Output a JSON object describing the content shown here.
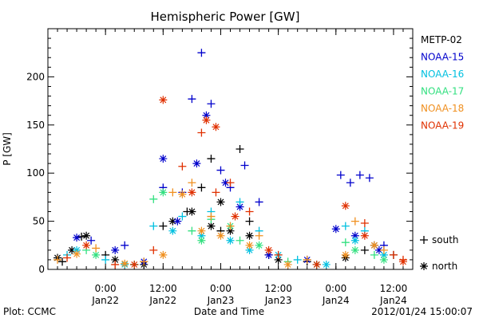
{
  "chart_data": {
    "type": "scatter",
    "title": "Hemispheric Power [GW]",
    "xlabel": "Date and Time",
    "ylabel": "P [GW]",
    "xlim": [
      "2012-01-21 12:00",
      "2012-01-24 16:00"
    ],
    "ylim": [
      0,
      250
    ],
    "y_ticks": [
      0,
      50,
      100,
      150,
      200
    ],
    "x_ticks": [
      {
        "at": "2012-01-22 00:00",
        "time": "0:00",
        "date": "Jan22"
      },
      {
        "at": "2012-01-22 12:00",
        "time": "12:00",
        "date": "Jan22"
      },
      {
        "at": "2012-01-23 00:00",
        "time": "0:00",
        "date": "Jan23"
      },
      {
        "at": "2012-01-23 12:00",
        "time": "12:00",
        "date": "Jan23"
      },
      {
        "at": "2012-01-24 00:00",
        "time": "0:00",
        "date": "Jan24"
      },
      {
        "at": "2012-01-24 12:00",
        "time": "12:00",
        "date": "Jan24"
      }
    ],
    "grid": false,
    "legend_position": "right",
    "symbol_legend": [
      {
        "symbol": "+",
        "label": "south"
      },
      {
        "symbol": "*",
        "label": "north"
      }
    ],
    "series": [
      {
        "name": "METP-02",
        "color": "#000000",
        "south": [
          [
            "2012-01-21 15:00",
            8
          ],
          [
            "2012-01-21 19:00",
            34
          ],
          [
            "2012-01-22 00:00",
            15
          ],
          [
            "2012-01-22 06:00",
            5
          ],
          [
            "2012-01-22 12:00",
            45
          ],
          [
            "2012-01-22 17:00",
            60
          ],
          [
            "2012-01-22 20:00",
            85
          ],
          [
            "2012-01-22 22:00",
            115
          ],
          [
            "2012-01-23 00:00",
            40
          ],
          [
            "2012-01-23 04:00",
            125
          ],
          [
            "2012-01-23 06:00",
            50
          ],
          [
            "2012-01-23 10:00",
            15
          ],
          [
            "2012-01-23 18:00",
            8
          ],
          [
            "2012-01-24 06:00",
            20
          ],
          [
            "2012-01-24 12:00",
            15
          ]
        ],
        "north": [
          [
            "2012-01-21 14:00",
            12
          ],
          [
            "2012-01-21 17:00",
            20
          ],
          [
            "2012-01-21 20:00",
            35
          ],
          [
            "2012-01-22 02:00",
            10
          ],
          [
            "2012-01-22 08:00",
            5
          ],
          [
            "2012-01-22 14:00",
            50
          ],
          [
            "2012-01-22 18:00",
            60
          ],
          [
            "2012-01-22 22:00",
            45
          ],
          [
            "2012-01-23 00:00",
            70
          ],
          [
            "2012-01-23 02:00",
            40
          ],
          [
            "2012-01-23 06:00",
            35
          ],
          [
            "2012-01-23 12:00",
            10
          ],
          [
            "2012-01-23 20:00",
            5
          ],
          [
            "2012-01-24 02:00",
            12
          ],
          [
            "2012-01-24 08:00",
            25
          ]
        ]
      },
      {
        "name": "NOAA-15",
        "color": "#0000cc",
        "south": [
          [
            "2012-01-21 21:00",
            30
          ],
          [
            "2012-01-22 04:00",
            25
          ],
          [
            "2012-01-22 12:00",
            85
          ],
          [
            "2012-01-22 16:00",
            80
          ],
          [
            "2012-01-22 18:00",
            177
          ],
          [
            "2012-01-22 20:00",
            225
          ],
          [
            "2012-01-22 22:00",
            172
          ],
          [
            "2012-01-23 00:00",
            103
          ],
          [
            "2012-01-23 02:00",
            85
          ],
          [
            "2012-01-23 05:00",
            108
          ],
          [
            "2012-01-23 08:00",
            70
          ],
          [
            "2012-01-24 01:00",
            98
          ],
          [
            "2012-01-24 03:00",
            90
          ],
          [
            "2012-01-24 05:00",
            98
          ],
          [
            "2012-01-24 07:00",
            95
          ],
          [
            "2012-01-24 10:00",
            25
          ]
        ],
        "north": [
          [
            "2012-01-21 18:00",
            33
          ],
          [
            "2012-01-22 02:00",
            20
          ],
          [
            "2012-01-22 08:00",
            8
          ],
          [
            "2012-01-22 12:00",
            115
          ],
          [
            "2012-01-22 15:00",
            50
          ],
          [
            "2012-01-22 19:00",
            110
          ],
          [
            "2012-01-22 21:00",
            160
          ],
          [
            "2012-01-23 01:00",
            90
          ],
          [
            "2012-01-23 04:00",
            65
          ],
          [
            "2012-01-23 10:00",
            15
          ],
          [
            "2012-01-23 18:00",
            10
          ],
          [
            "2012-01-24 00:00",
            42
          ],
          [
            "2012-01-24 04:00",
            35
          ],
          [
            "2012-01-24 09:00",
            20
          ]
        ]
      },
      {
        "name": "NOAA-16",
        "color": "#00c0e0",
        "south": [
          [
            "2012-01-21 16:00",
            15
          ],
          [
            "2012-01-22 00:00",
            10
          ],
          [
            "2012-01-22 10:00",
            45
          ],
          [
            "2012-01-22 16:00",
            55
          ],
          [
            "2012-01-22 22:00",
            60
          ],
          [
            "2012-01-23 04:00",
            70
          ],
          [
            "2012-01-23 08:00",
            40
          ],
          [
            "2012-01-23 16:00",
            10
          ],
          [
            "2012-01-24 02:00",
            45
          ],
          [
            "2012-01-24 06:00",
            40
          ]
        ],
        "north": [
          [
            "2012-01-21 18:00",
            20
          ],
          [
            "2012-01-22 04:00",
            5
          ],
          [
            "2012-01-22 14:00",
            40
          ],
          [
            "2012-01-22 20:00",
            35
          ],
          [
            "2012-01-23 02:00",
            30
          ],
          [
            "2012-01-23 06:00",
            20
          ],
          [
            "2012-01-23 12:00",
            15
          ],
          [
            "2012-01-23 22:00",
            5
          ],
          [
            "2012-01-24 04:00",
            30
          ],
          [
            "2012-01-24 10:00",
            15
          ]
        ]
      },
      {
        "name": "NOAA-17",
        "color": "#33e080",
        "south": [
          [
            "2012-01-21 20:00",
            20
          ],
          [
            "2012-01-22 06:00",
            5
          ],
          [
            "2012-01-22 10:00",
            73
          ],
          [
            "2012-01-22 18:00",
            40
          ],
          [
            "2012-01-22 22:00",
            52
          ],
          [
            "2012-01-23 04:00",
            30
          ],
          [
            "2012-01-23 14:00",
            8
          ],
          [
            "2012-01-24 02:00",
            28
          ],
          [
            "2012-01-24 08:00",
            15
          ]
        ],
        "north": [
          [
            "2012-01-21 22:00",
            15
          ],
          [
            "2012-01-22 12:00",
            80
          ],
          [
            "2012-01-22 20:00",
            30
          ],
          [
            "2012-01-23 02:00",
            45
          ],
          [
            "2012-01-23 08:00",
            25
          ],
          [
            "2012-01-23 20:00",
            5
          ],
          [
            "2012-01-24 04:00",
            20
          ],
          [
            "2012-01-24 10:00",
            10
          ]
        ]
      },
      {
        "name": "NOAA-18",
        "color": "#f09020",
        "south": [
          [
            "2012-01-21 14:00",
            10
          ],
          [
            "2012-01-21 22:00",
            22
          ],
          [
            "2012-01-22 08:00",
            8
          ],
          [
            "2012-01-22 14:00",
            80
          ],
          [
            "2012-01-22 18:00",
            90
          ],
          [
            "2012-01-22 22:00",
            55
          ],
          [
            "2012-01-23 02:00",
            45
          ],
          [
            "2012-01-23 08:00",
            35
          ],
          [
            "2012-01-23 18:00",
            10
          ],
          [
            "2012-01-24 04:00",
            50
          ],
          [
            "2012-01-24 10:00",
            20
          ]
        ],
        "north": [
          [
            "2012-01-21 18:00",
            16
          ],
          [
            "2012-01-22 04:00",
            6
          ],
          [
            "2012-01-22 12:00",
            15
          ],
          [
            "2012-01-22 16:00",
            78
          ],
          [
            "2012-01-22 20:00",
            40
          ],
          [
            "2012-01-23 00:00",
            35
          ],
          [
            "2012-01-23 06:00",
            25
          ],
          [
            "2012-01-23 14:00",
            5
          ],
          [
            "2012-01-24 02:00",
            15
          ],
          [
            "2012-01-24 08:00",
            25
          ]
        ]
      },
      {
        "name": "NOAA-19",
        "color": "#e03000",
        "south": [
          [
            "2012-01-21 16:00",
            12
          ],
          [
            "2012-01-22 02:00",
            5
          ],
          [
            "2012-01-22 10:00",
            20
          ],
          [
            "2012-01-22 16:00",
            107
          ],
          [
            "2012-01-22 20:00",
            142
          ],
          [
            "2012-01-22 23:00",
            80
          ],
          [
            "2012-01-23 02:00",
            90
          ],
          [
            "2012-01-23 06:00",
            60
          ],
          [
            "2012-01-23 12:00",
            15
          ],
          [
            "2012-01-24 06:00",
            48
          ],
          [
            "2012-01-24 12:00",
            15
          ],
          [
            "2012-01-24 14:00",
            10
          ]
        ],
        "north": [
          [
            "2012-01-21 20:00",
            25
          ],
          [
            "2012-01-22 06:00",
            5
          ],
          [
            "2012-01-22 12:00",
            176
          ],
          [
            "2012-01-22 18:00",
            80
          ],
          [
            "2012-01-22 21:00",
            155
          ],
          [
            "2012-01-22 23:00",
            148
          ],
          [
            "2012-01-23 03:00",
            55
          ],
          [
            "2012-01-23 10:00",
            20
          ],
          [
            "2012-01-23 20:00",
            5
          ],
          [
            "2012-01-24 02:00",
            66
          ],
          [
            "2012-01-24 06:00",
            35
          ],
          [
            "2012-01-24 14:00",
            8
          ]
        ]
      }
    ]
  },
  "footer": {
    "plot_credit": "Plot: CCMC",
    "timestamp": "2012/01/24 15:00:07"
  }
}
